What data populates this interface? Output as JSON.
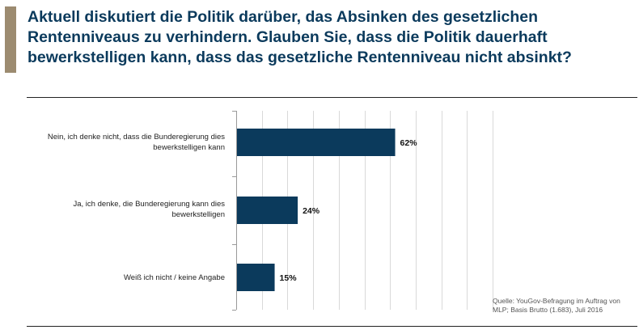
{
  "title": "Aktuell diskutiert die Politik darüber, das Absinken des gesetzlichen Rentenniveaus zu verhindern. Glauben Sie, dass die Politik dauerhaft bewerkstelligen kann, dass das gesetzliche Rentenniveau nicht absinkt?",
  "source": "Quelle: YouGov-Befragung im Auftrag von MLP; Basis Brutto (1.683), Juli 2016",
  "colors": {
    "accent": "#9c8b70",
    "bar": "#0b3a5c",
    "title": "#0b3a5c"
  },
  "chart_data": {
    "type": "bar",
    "orientation": "horizontal",
    "categories": [
      "Nein, ich denke nicht, dass die Bunderegierung dies bewerkstelligen kann",
      "Ja, ich denke, die Bunderegierung kann dies bewerkstelligen",
      "Weiß ich nicht / keine Angabe"
    ],
    "values": [
      62,
      24,
      15
    ],
    "value_labels": [
      "62%",
      "24%",
      "15%"
    ],
    "xlim": [
      0,
      100
    ],
    "grid": true
  }
}
